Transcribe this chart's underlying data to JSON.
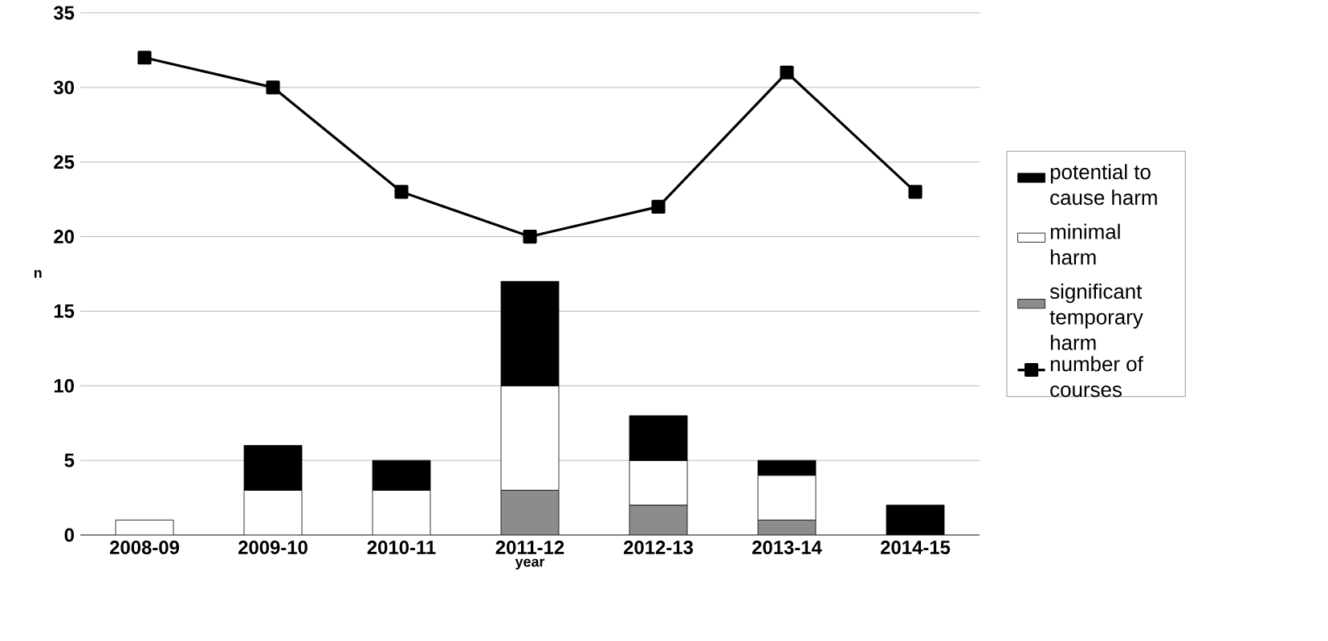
{
  "chart_data": {
    "type": "bar",
    "stacked": true,
    "xlabel": "year",
    "ylabel": "n",
    "categories": [
      "2008-09",
      "2009-10",
      "2010-11",
      "2011-12",
      "2012-13",
      "2013-14",
      "2014-15"
    ],
    "series": [
      {
        "name": "significant temporary harm",
        "color": "#8c8c8c",
        "values": [
          0,
          0,
          0,
          3,
          2,
          1,
          0
        ]
      },
      {
        "name": "minimal harm",
        "color": "#ffffff",
        "values": [
          1,
          3,
          3,
          7,
          3,
          3,
          0
        ]
      },
      {
        "name": "potential to cause harm",
        "color": "#000000",
        "values": [
          0,
          3,
          2,
          7,
          3,
          1,
          2
        ]
      },
      {
        "name": "number of courses",
        "type": "line",
        "color": "#000000",
        "marker": "square",
        "values": [
          32,
          30,
          23,
          20,
          22,
          31,
          23
        ]
      }
    ],
    "ylim": [
      0,
      35
    ],
    "yticks": [
      0,
      5,
      10,
      15,
      20,
      25,
      30,
      35
    ],
    "grid": "y",
    "legend": "right"
  }
}
